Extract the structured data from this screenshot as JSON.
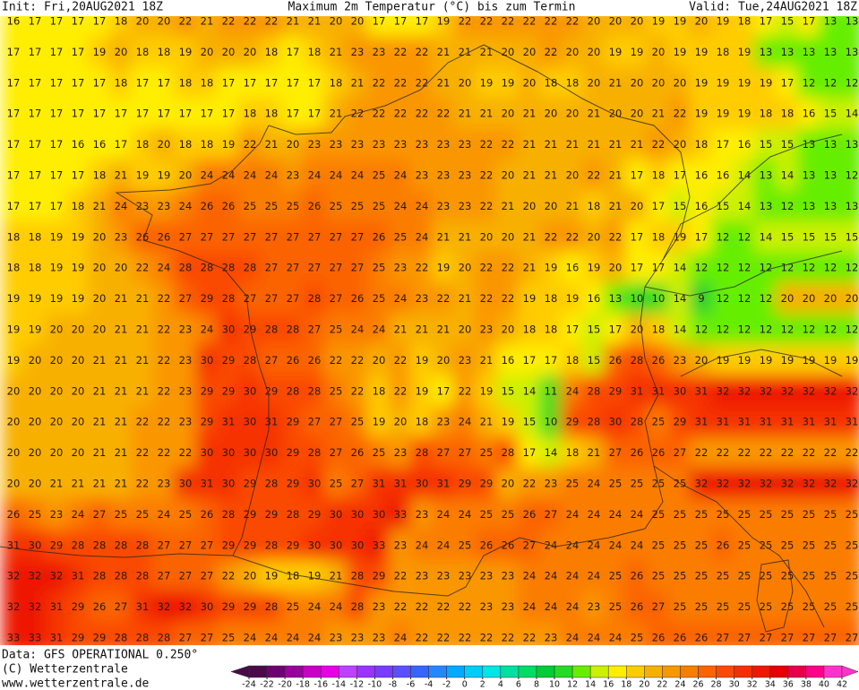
{
  "header": {
    "init": "Init: Fri,20AUG2021 18Z",
    "title": "Maximum 2m Temperatur (°C) bis zum Termin",
    "valid": "Valid: Tue,24AUG2021 18Z"
  },
  "map": {
    "type": "contour-map",
    "values": [
      [
        16,
        17,
        17,
        17,
        17,
        18,
        20,
        20,
        22,
        21,
        22,
        22,
        22,
        21,
        21,
        20,
        20,
        17,
        17,
        17,
        19,
        22,
        22,
        22,
        22,
        22,
        22,
        20,
        20,
        20,
        19,
        19,
        20,
        19,
        18,
        17,
        15,
        17,
        13,
        13
      ],
      [
        17,
        17,
        17,
        17,
        19,
        20,
        18,
        18,
        19,
        20,
        20,
        20,
        18,
        17,
        18,
        21,
        23,
        23,
        22,
        22,
        21,
        21,
        21,
        20,
        20,
        22,
        20,
        20,
        19,
        19,
        20,
        19,
        19,
        18,
        19,
        13,
        13,
        13,
        13,
        13
      ],
      [
        17,
        17,
        17,
        17,
        17,
        18,
        17,
        17,
        18,
        18,
        17,
        17,
        17,
        17,
        17,
        18,
        21,
        22,
        22,
        22,
        21,
        20,
        19,
        19,
        20,
        18,
        18,
        20,
        21,
        20,
        20,
        20,
        19,
        19,
        19,
        19,
        17,
        12,
        12,
        12
      ],
      [
        17,
        17,
        17,
        17,
        17,
        17,
        17,
        17,
        17,
        17,
        17,
        18,
        18,
        17,
        17,
        21,
        22,
        22,
        22,
        22,
        22,
        21,
        21,
        20,
        21,
        20,
        20,
        21,
        20,
        20,
        21,
        22,
        19,
        19,
        19,
        18,
        18,
        16,
        15,
        14
      ],
      [
        17,
        17,
        17,
        16,
        16,
        17,
        18,
        20,
        18,
        18,
        19,
        22,
        21,
        20,
        23,
        23,
        23,
        23,
        23,
        23,
        23,
        23,
        22,
        22,
        21,
        21,
        21,
        21,
        21,
        21,
        22,
        20,
        18,
        17,
        16,
        15,
        15,
        13,
        13,
        13
      ],
      [
        17,
        17,
        17,
        17,
        18,
        21,
        19,
        19,
        20,
        24,
        24,
        24,
        24,
        23,
        24,
        24,
        24,
        25,
        24,
        23,
        23,
        23,
        22,
        20,
        21,
        21,
        20,
        22,
        21,
        17,
        18,
        17,
        16,
        16,
        14,
        13,
        14,
        13,
        13,
        12
      ],
      [
        17,
        17,
        17,
        18,
        21,
        24,
        23,
        23,
        24,
        26,
        26,
        25,
        25,
        25,
        26,
        25,
        25,
        25,
        24,
        24,
        23,
        23,
        22,
        21,
        20,
        20,
        21,
        18,
        21,
        20,
        17,
        15,
        16,
        15,
        14,
        13,
        12,
        13,
        13,
        13
      ],
      [
        18,
        18,
        19,
        19,
        20,
        23,
        26,
        26,
        27,
        27,
        27,
        27,
        27,
        27,
        27,
        27,
        27,
        26,
        25,
        24,
        21,
        21,
        20,
        20,
        21,
        22,
        22,
        20,
        22,
        17,
        18,
        19,
        17,
        12,
        12,
        14,
        15,
        15,
        15,
        15
      ],
      [
        18,
        18,
        19,
        19,
        20,
        20,
        22,
        24,
        28,
        28,
        28,
        28,
        27,
        27,
        27,
        27,
        27,
        25,
        23,
        22,
        19,
        20,
        22,
        22,
        21,
        19,
        16,
        19,
        20,
        17,
        17,
        14,
        12,
        12,
        12,
        12,
        12,
        12,
        12,
        12
      ],
      [
        19,
        19,
        19,
        19,
        20,
        21,
        21,
        22,
        27,
        29,
        28,
        27,
        27,
        27,
        28,
        27,
        26,
        25,
        24,
        23,
        22,
        21,
        22,
        22,
        19,
        18,
        19,
        16,
        13,
        10,
        10,
        14,
        9,
        12,
        12,
        12,
        20,
        20,
        20,
        20
      ],
      [
        19,
        19,
        20,
        20,
        20,
        21,
        21,
        22,
        23,
        24,
        30,
        29,
        28,
        28,
        27,
        25,
        24,
        24,
        21,
        21,
        21,
        20,
        23,
        20,
        18,
        18,
        17,
        15,
        17,
        20,
        18,
        14,
        12,
        12,
        12,
        12,
        12,
        12,
        12,
        12
      ],
      [
        19,
        20,
        20,
        20,
        21,
        21,
        21,
        22,
        23,
        30,
        29,
        28,
        27,
        26,
        26,
        22,
        22,
        20,
        22,
        19,
        20,
        23,
        21,
        16,
        17,
        17,
        18,
        15,
        26,
        28,
        26,
        23,
        20,
        19,
        19,
        19,
        19,
        19,
        19,
        19
      ],
      [
        20,
        20,
        20,
        20,
        21,
        21,
        21,
        22,
        23,
        29,
        29,
        30,
        29,
        28,
        28,
        25,
        22,
        18,
        22,
        19,
        17,
        22,
        19,
        15,
        14,
        11,
        24,
        28,
        29,
        31,
        31,
        30,
        31,
        32,
        32,
        32,
        32,
        32,
        32,
        32
      ],
      [
        20,
        20,
        20,
        20,
        21,
        21,
        22,
        22,
        23,
        29,
        31,
        30,
        31,
        29,
        27,
        27,
        25,
        19,
        20,
        18,
        23,
        24,
        21,
        19,
        15,
        10,
        29,
        28,
        30,
        28,
        25,
        29,
        31,
        31,
        31,
        31,
        31,
        31,
        31,
        31
      ],
      [
        20,
        20,
        20,
        20,
        21,
        21,
        22,
        22,
        22,
        30,
        30,
        30,
        30,
        29,
        28,
        27,
        26,
        25,
        23,
        28,
        27,
        27,
        25,
        28,
        17,
        14,
        18,
        21,
        27,
        26,
        26,
        27,
        22,
        22,
        22,
        22,
        22,
        22,
        22,
        22
      ],
      [
        20,
        20,
        21,
        21,
        21,
        21,
        22,
        23,
        30,
        31,
        30,
        29,
        28,
        29,
        30,
        25,
        27,
        31,
        31,
        30,
        31,
        29,
        29,
        20,
        22,
        23,
        25,
        24,
        25,
        25,
        25,
        25,
        32,
        32,
        32,
        32,
        32,
        32,
        32,
        32
      ],
      [
        26,
        25,
        23,
        24,
        27,
        25,
        25,
        24,
        25,
        26,
        28,
        29,
        29,
        28,
        29,
        30,
        30,
        30,
        33,
        23,
        24,
        24,
        25,
        25,
        26,
        27,
        24,
        24,
        24,
        24,
        25,
        25,
        25,
        25,
        25,
        25,
        25,
        25,
        25,
        25
      ],
      [
        31,
        30,
        29,
        28,
        28,
        28,
        28,
        27,
        27,
        27,
        29,
        29,
        28,
        29,
        30,
        30,
        30,
        33,
        23,
        24,
        24,
        25,
        26,
        26,
        27,
        24,
        24,
        24,
        24,
        24,
        25,
        25,
        25,
        26,
        25,
        25,
        25,
        25,
        25,
        25
      ],
      [
        32,
        32,
        32,
        31,
        28,
        28,
        28,
        27,
        27,
        27,
        22,
        20,
        19,
        18,
        19,
        21,
        28,
        29,
        22,
        23,
        23,
        23,
        23,
        23,
        24,
        24,
        24,
        24,
        25,
        26,
        25,
        25,
        25,
        25,
        25,
        25,
        25,
        25,
        25,
        25
      ],
      [
        32,
        32,
        31,
        29,
        26,
        27,
        31,
        32,
        32,
        30,
        29,
        29,
        28,
        25,
        24,
        24,
        28,
        23,
        22,
        22,
        22,
        22,
        23,
        23,
        24,
        24,
        24,
        23,
        25,
        26,
        27,
        25,
        25,
        25,
        25,
        25,
        25,
        25,
        25,
        25
      ],
      [
        33,
        33,
        31,
        29,
        29,
        28,
        28,
        28,
        27,
        27,
        25,
        24,
        24,
        24,
        24,
        23,
        23,
        23,
        24,
        22,
        22,
        22,
        22,
        22,
        22,
        23,
        24,
        24,
        24,
        25,
        26,
        26,
        26,
        27,
        27,
        27,
        27,
        27,
        27,
        27
      ]
    ]
  },
  "colorbar": {
    "ticks": [
      -24,
      -22,
      -20,
      -18,
      -16,
      -14,
      -12,
      -10,
      -8,
      -6,
      -4,
      -2,
      0,
      2,
      4,
      6,
      8,
      10,
      12,
      14,
      16,
      18,
      20,
      22,
      24,
      26,
      28,
      30,
      32,
      34,
      36,
      38,
      40,
      42
    ],
    "colors": [
      "#4a0a4a",
      "#6e0070",
      "#9a009e",
      "#c800c8",
      "#e600e6",
      "#c040ff",
      "#9a33ff",
      "#7a3aff",
      "#5a50ff",
      "#3366ff",
      "#2288ff",
      "#00aaff",
      "#00ccff",
      "#00e5e5",
      "#00e0a0",
      "#00dd66",
      "#00cc33",
      "#22dd22",
      "#66ee00",
      "#ccf000",
      "#ffee00",
      "#ffcc00",
      "#f8b000",
      "#fa9600",
      "#fb7d00",
      "#fb6400",
      "#fa4a00",
      "#f53000",
      "#ee1800",
      "#e60000",
      "#e6004a",
      "#ff0088",
      "#ff33cc"
    ]
  },
  "footer": {
    "data": "Data: GFS OPERATIONAL 0.250°",
    "copyright": "(C) Wetterzentrale",
    "url": "www.wetterzentrale.de"
  }
}
